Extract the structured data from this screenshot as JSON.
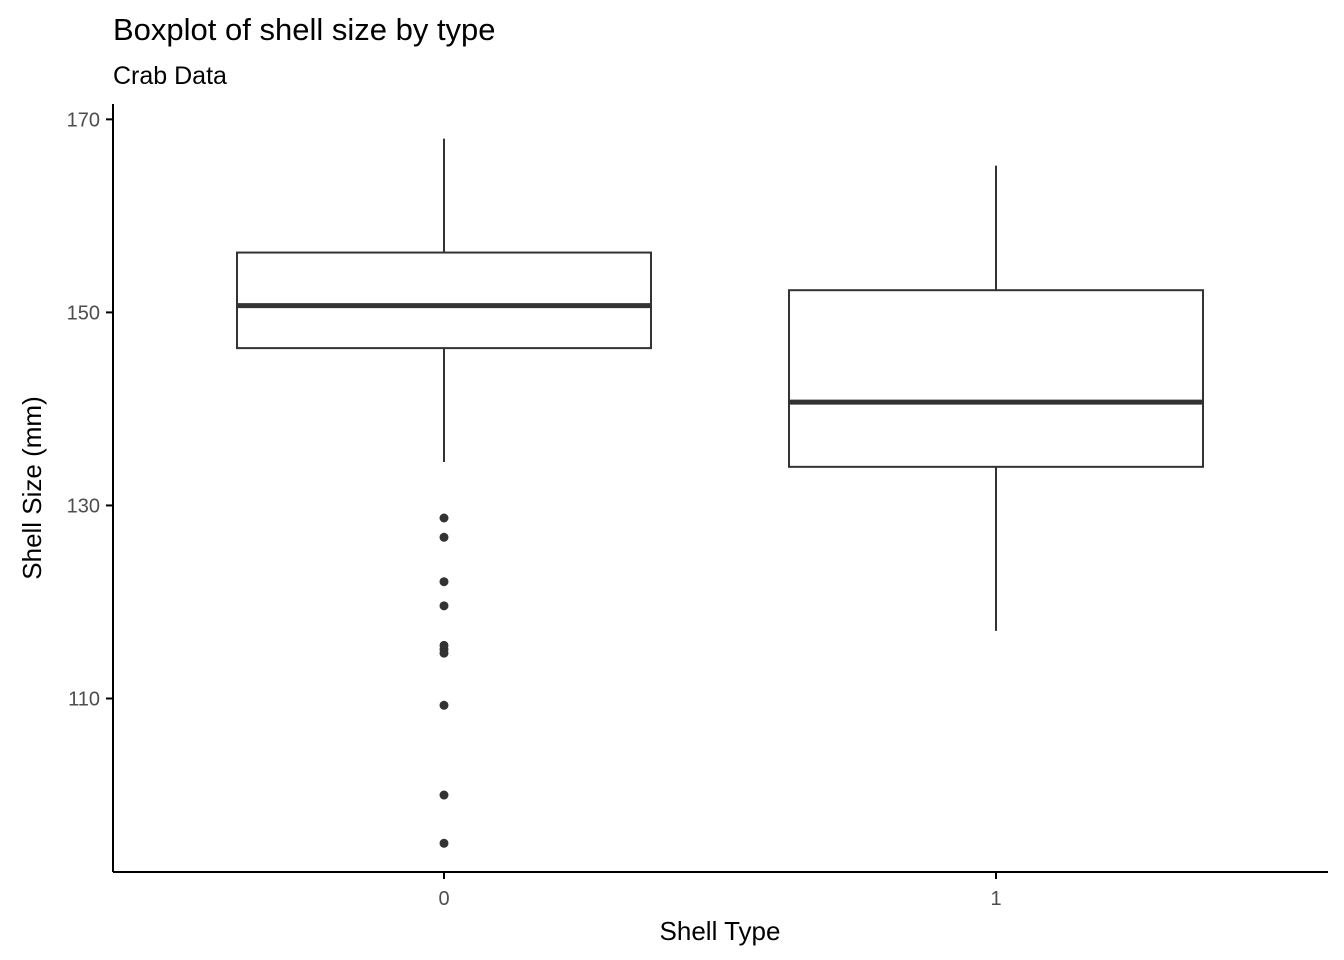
{
  "chart_data": {
    "type": "boxplot",
    "title": "Boxplot of shell size by type",
    "subtitle": "Crab Data",
    "xlabel": "Shell Type",
    "ylabel": "Shell Size (mm)",
    "categories": [
      "0",
      "1"
    ],
    "y_ticks": [
      110,
      130,
      150,
      170
    ],
    "ylim": [
      102.2,
      171.6
    ],
    "grid": false,
    "legend": "none",
    "colors": {
      "box_stroke": "#333333",
      "box_fill": "#ffffff",
      "axis": "#000000",
      "tick_label": "#4d4d4d"
    },
    "boxes": [
      {
        "category": "0",
        "whisker_low": 134.5,
        "q1": 146.3,
        "median": 150.7,
        "q3": 156.2,
        "whisker_high": 168.0,
        "outliers": [
          128.7,
          126.7,
          122.1,
          119.6,
          115.5,
          115.1,
          114.7,
          109.3,
          100.0,
          95.0
        ]
      },
      {
        "category": "1",
        "whisker_low": 117.0,
        "q1": 134.0,
        "median": 140.7,
        "q3": 152.3,
        "whisker_high": 165.2,
        "outliers": []
      }
    ]
  }
}
